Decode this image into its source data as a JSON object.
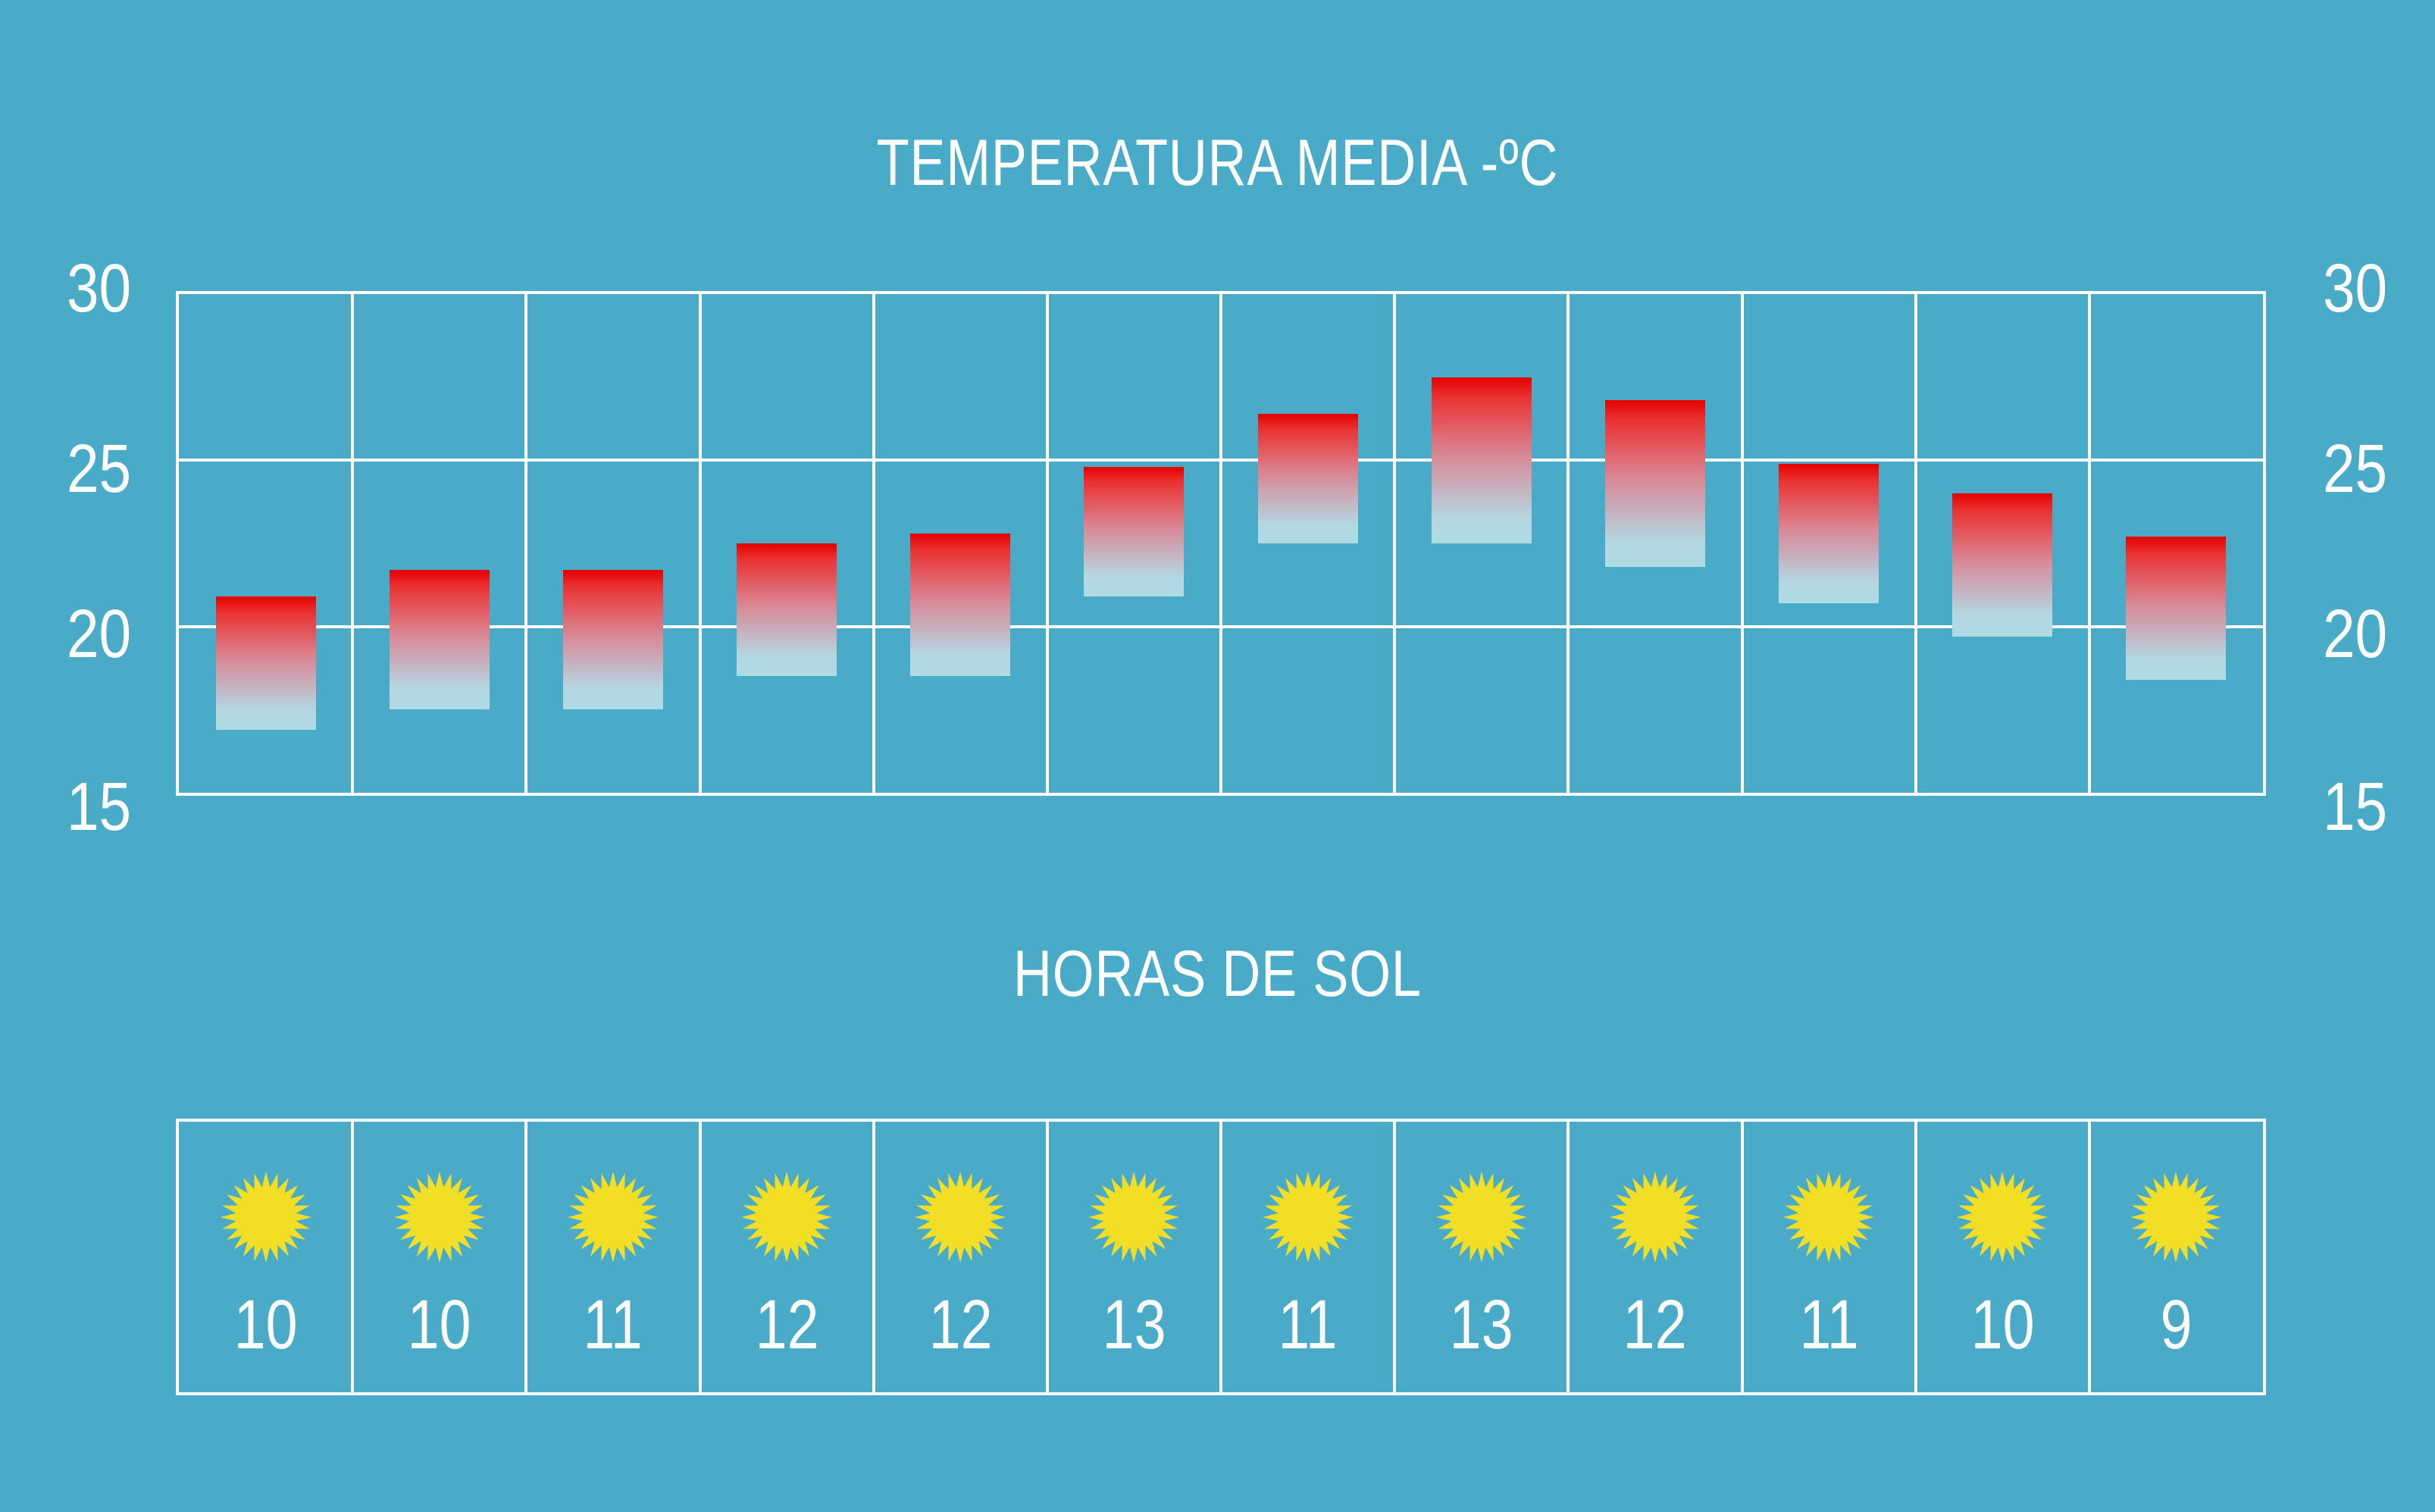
{
  "temperature_chart": {
    "title": "TEMPERATURA MEDIA -ºC",
    "y_ticks": [
      "30",
      "25",
      "20",
      "15"
    ]
  },
  "sun_chart": {
    "title": "HORAS DE SOL",
    "hours": [
      "10",
      "10",
      "11",
      "12",
      "12",
      "13",
      "11",
      "13",
      "12",
      "11",
      "10",
      "9"
    ]
  },
  "colors": {
    "background": "#4aabc9",
    "grid": "#ffffff",
    "bar_top": "#e50000",
    "bar_bottom": "#aedbe4",
    "sun": "#f2df25"
  },
  "chart_data": [
    {
      "type": "bar",
      "title": "TEMPERATURA MEDIA -ºC",
      "ylim": [
        15,
        30
      ],
      "yticks": [
        15,
        20,
        25,
        30
      ],
      "grid": true,
      "series": [
        {
          "low": [
            16.9,
            17.5,
            17.5,
            18.5,
            18.5,
            20.9,
            22.5,
            22.5,
            21.8,
            20.7,
            19.7,
            18.4
          ],
          "high": [
            20.9,
            21.7,
            21.7,
            22.5,
            22.8,
            24.8,
            26.4,
            27.5,
            26.8,
            24.9,
            24.0,
            22.7
          ]
        }
      ]
    },
    {
      "type": "table",
      "title": "HORAS DE SOL",
      "values": [
        10,
        10,
        11,
        12,
        12,
        13,
        11,
        13,
        12,
        11,
        10,
        9
      ]
    }
  ]
}
